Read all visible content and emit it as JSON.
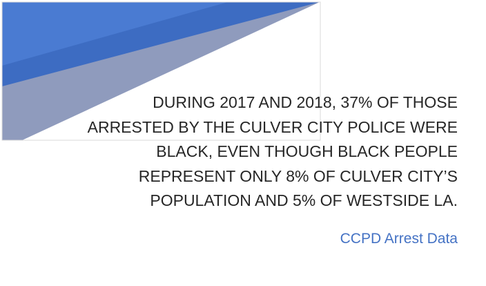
{
  "slide": {
    "text_lines": [
      "DURING 2017 AND 2018, 37% OF THOSE",
      "ARRESTED BY THE CULVER CITY POLICE WERE",
      "BLACK, EVEN THOUGH BLACK PEOPLE",
      "REPRESENT ONLY 8% OF CULVER CITY’S",
      "POPULATION AND 5% OF WESTSIDE LA."
    ],
    "source": "CCPD Arrest Data"
  }
}
